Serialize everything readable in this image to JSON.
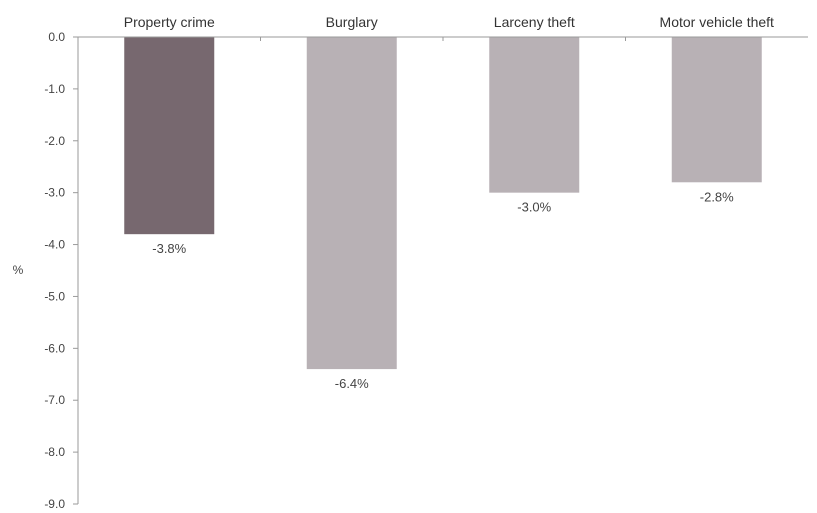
{
  "chart_data": {
    "type": "bar",
    "categories": [
      "Property crime",
      "Burglary",
      "Larceny theft",
      "Motor vehicle theft"
    ],
    "values": [
      -3.8,
      -6.4,
      -3.0,
      -2.8
    ],
    "data_labels": [
      "-3.8%",
      "-6.4%",
      "-3.0%",
      "-2.8%"
    ],
    "ylabel": "%",
    "ylim": [
      -9.0,
      0.0
    ],
    "yticks": [
      0.0,
      -1.0,
      -2.0,
      -3.0,
      -4.0,
      -5.0,
      -6.0,
      -7.0,
      -8.0,
      -9.0
    ],
    "ytick_labels": [
      "0.0",
      "-1.0",
      "-2.0",
      "-3.0",
      "-4.0",
      "-5.0",
      "-6.0",
      "-7.0",
      "-8.0",
      "-9.0"
    ],
    "grid": false,
    "category_axis_position": "top",
    "highlighted_category": "Property crime",
    "colors": {
      "highlight": "#77686f",
      "bar": "#b8b1b5",
      "axis": "#9a9a9a"
    }
  }
}
